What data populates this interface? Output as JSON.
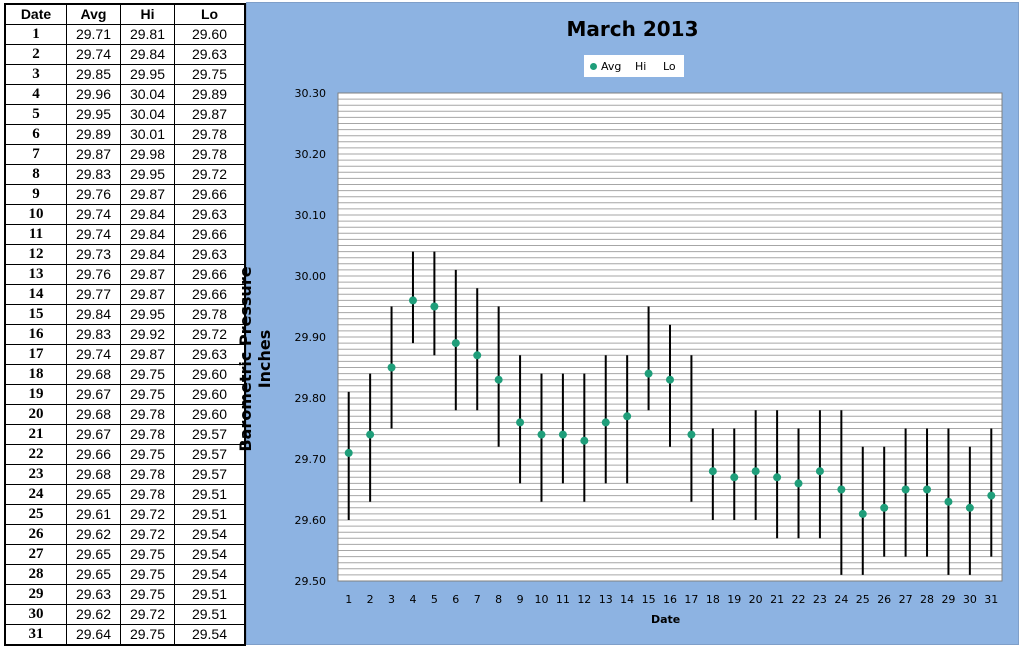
{
  "table": {
    "headers": [
      "Date",
      "Avg",
      "Hi",
      "Lo"
    ],
    "rows": [
      [
        "1",
        "29.71",
        "29.81",
        "29.60"
      ],
      [
        "2",
        "29.74",
        "29.84",
        "29.63"
      ],
      [
        "3",
        "29.85",
        "29.95",
        "29.75"
      ],
      [
        "4",
        "29.96",
        "30.04",
        "29.89"
      ],
      [
        "5",
        "29.95",
        "30.04",
        "29.87"
      ],
      [
        "6",
        "29.89",
        "30.01",
        "29.78"
      ],
      [
        "7",
        "29.87",
        "29.98",
        "29.78"
      ],
      [
        "8",
        "29.83",
        "29.95",
        "29.72"
      ],
      [
        "9",
        "29.76",
        "29.87",
        "29.66"
      ],
      [
        "10",
        "29.74",
        "29.84",
        "29.63"
      ],
      [
        "11",
        "29.74",
        "29.84",
        "29.66"
      ],
      [
        "12",
        "29.73",
        "29.84",
        "29.63"
      ],
      [
        "13",
        "29.76",
        "29.87",
        "29.66"
      ],
      [
        "14",
        "29.77",
        "29.87",
        "29.66"
      ],
      [
        "15",
        "29.84",
        "29.95",
        "29.78"
      ],
      [
        "16",
        "29.83",
        "29.92",
        "29.72"
      ],
      [
        "17",
        "29.74",
        "29.87",
        "29.63"
      ],
      [
        "18",
        "29.68",
        "29.75",
        "29.60"
      ],
      [
        "19",
        "29.67",
        "29.75",
        "29.60"
      ],
      [
        "20",
        "29.68",
        "29.78",
        "29.60"
      ],
      [
        "21",
        "29.67",
        "29.78",
        "29.57"
      ],
      [
        "22",
        "29.66",
        "29.75",
        "29.57"
      ],
      [
        "23",
        "29.68",
        "29.78",
        "29.57"
      ],
      [
        "24",
        "29.65",
        "29.78",
        "29.51"
      ],
      [
        "25",
        "29.61",
        "29.72",
        "29.51"
      ],
      [
        "26",
        "29.62",
        "29.72",
        "29.54"
      ],
      [
        "27",
        "29.65",
        "29.75",
        "29.54"
      ],
      [
        "28",
        "29.65",
        "29.75",
        "29.54"
      ],
      [
        "29",
        "29.63",
        "29.75",
        "29.51"
      ],
      [
        "30",
        "29.62",
        "29.72",
        "29.51"
      ],
      [
        "31",
        "29.64",
        "29.75",
        "29.54"
      ]
    ]
  },
  "chart_data": {
    "type": "scatter",
    "title": "March 2013",
    "xlabel": "Date",
    "ylabel": "Barometric Pressure Inches",
    "ylim": [
      29.5,
      30.3
    ],
    "yticks": [
      "29.50",
      "29.60",
      "29.70",
      "29.80",
      "29.90",
      "30.00",
      "30.10",
      "30.20",
      "30.30"
    ],
    "grid": true,
    "legend_position": "top-center",
    "legend": [
      "Avg",
      "Hi",
      "Lo"
    ],
    "x": [
      1,
      2,
      3,
      4,
      5,
      6,
      7,
      8,
      9,
      10,
      11,
      12,
      13,
      14,
      15,
      16,
      17,
      18,
      19,
      20,
      21,
      22,
      23,
      24,
      25,
      26,
      27,
      28,
      29,
      30,
      31
    ],
    "series": [
      {
        "name": "Avg",
        "values": [
          29.71,
          29.74,
          29.85,
          29.96,
          29.95,
          29.89,
          29.87,
          29.83,
          29.76,
          29.74,
          29.74,
          29.73,
          29.76,
          29.77,
          29.84,
          29.83,
          29.74,
          29.68,
          29.67,
          29.68,
          29.67,
          29.66,
          29.68,
          29.65,
          29.61,
          29.62,
          29.65,
          29.65,
          29.63,
          29.62,
          29.64
        ]
      },
      {
        "name": "Hi",
        "values": [
          29.81,
          29.84,
          29.95,
          30.04,
          30.04,
          30.01,
          29.98,
          29.95,
          29.87,
          29.84,
          29.84,
          29.84,
          29.87,
          29.87,
          29.95,
          29.92,
          29.87,
          29.75,
          29.75,
          29.78,
          29.78,
          29.75,
          29.78,
          29.78,
          29.72,
          29.72,
          29.75,
          29.75,
          29.75,
          29.72,
          29.75
        ]
      },
      {
        "name": "Lo",
        "values": [
          29.6,
          29.63,
          29.75,
          29.89,
          29.87,
          29.78,
          29.78,
          29.72,
          29.66,
          29.63,
          29.66,
          29.63,
          29.66,
          29.66,
          29.78,
          29.72,
          29.63,
          29.6,
          29.6,
          29.6,
          29.57,
          29.57,
          29.57,
          29.51,
          29.51,
          29.54,
          29.54,
          29.54,
          29.51,
          29.51,
          29.54
        ]
      }
    ]
  },
  "colors": {
    "chart_background": "#8db3e2",
    "plot_background": "#ffffff",
    "avg_marker": "#1f9e7a",
    "range_bar": "#000000",
    "gridline": "#a6a6a6"
  }
}
